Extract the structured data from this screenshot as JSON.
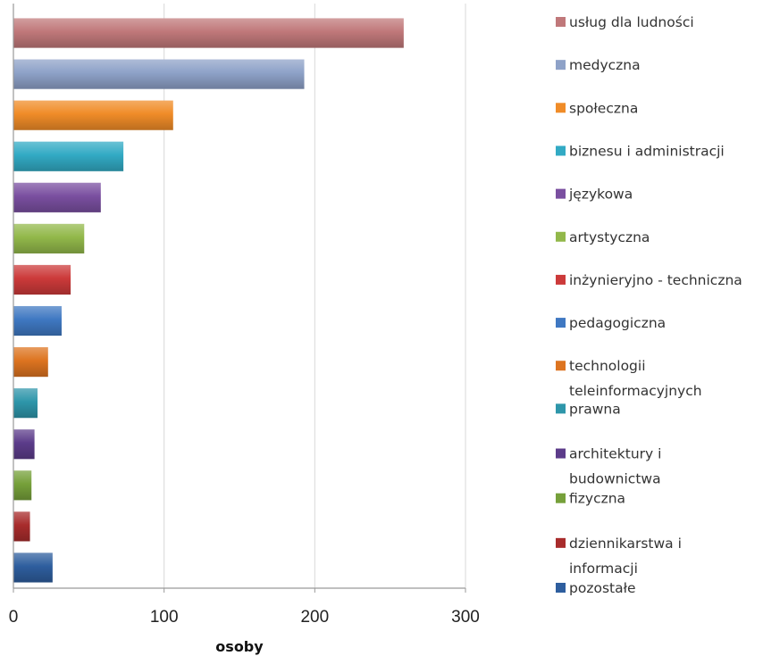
{
  "chart_data": {
    "type": "bar",
    "orientation": "horizontal",
    "title": "",
    "xlabel": "osoby",
    "ylabel": "",
    "xlim": [
      0,
      300
    ],
    "xticks": [
      0,
      100,
      200,
      300
    ],
    "grid": true,
    "legend_position": "right",
    "categories": [
      "usług dla ludności",
      "medyczna",
      "społeczna",
      "biznesu i administracji",
      "językowa",
      "artystyczna",
      "inżynieryjno - techniczna",
      "pedagogiczna",
      "technologii teleinformacyjnych",
      "prawna",
      "architektury i budownictwa",
      "fizyczna",
      "dziennikarstwa i informacji",
      "pozostałe"
    ],
    "legend_lines": [
      [
        "usług dla ludności"
      ],
      [
        "medyczna"
      ],
      [
        "społeczna"
      ],
      [
        "biznesu i administracji"
      ],
      [
        "językowa"
      ],
      [
        "artystyczna"
      ],
      [
        "inżynieryjno - techniczna"
      ],
      [
        "pedagogiczna"
      ],
      [
        "technologii",
        "teleinformacyjnych"
      ],
      [
        "prawna"
      ],
      [
        "architektury i",
        "budownictwa"
      ],
      [
        "fizyczna"
      ],
      [
        "dziennikarstwa i",
        "informacji"
      ],
      [
        "pozostałe"
      ]
    ],
    "values": [
      259,
      193,
      106,
      73,
      58,
      47,
      38,
      32,
      23,
      16,
      14,
      12,
      11,
      26
    ],
    "colors": [
      "#c0787a",
      "#8ea2c8",
      "#f08c28",
      "#32aac4",
      "#7a4fa0",
      "#92b84a",
      "#cc3a3a",
      "#3f78c2",
      "#dd7420",
      "#2e96aa",
      "#5c3c8a",
      "#76a03a",
      "#a82c2c",
      "#2e5e9e"
    ]
  }
}
